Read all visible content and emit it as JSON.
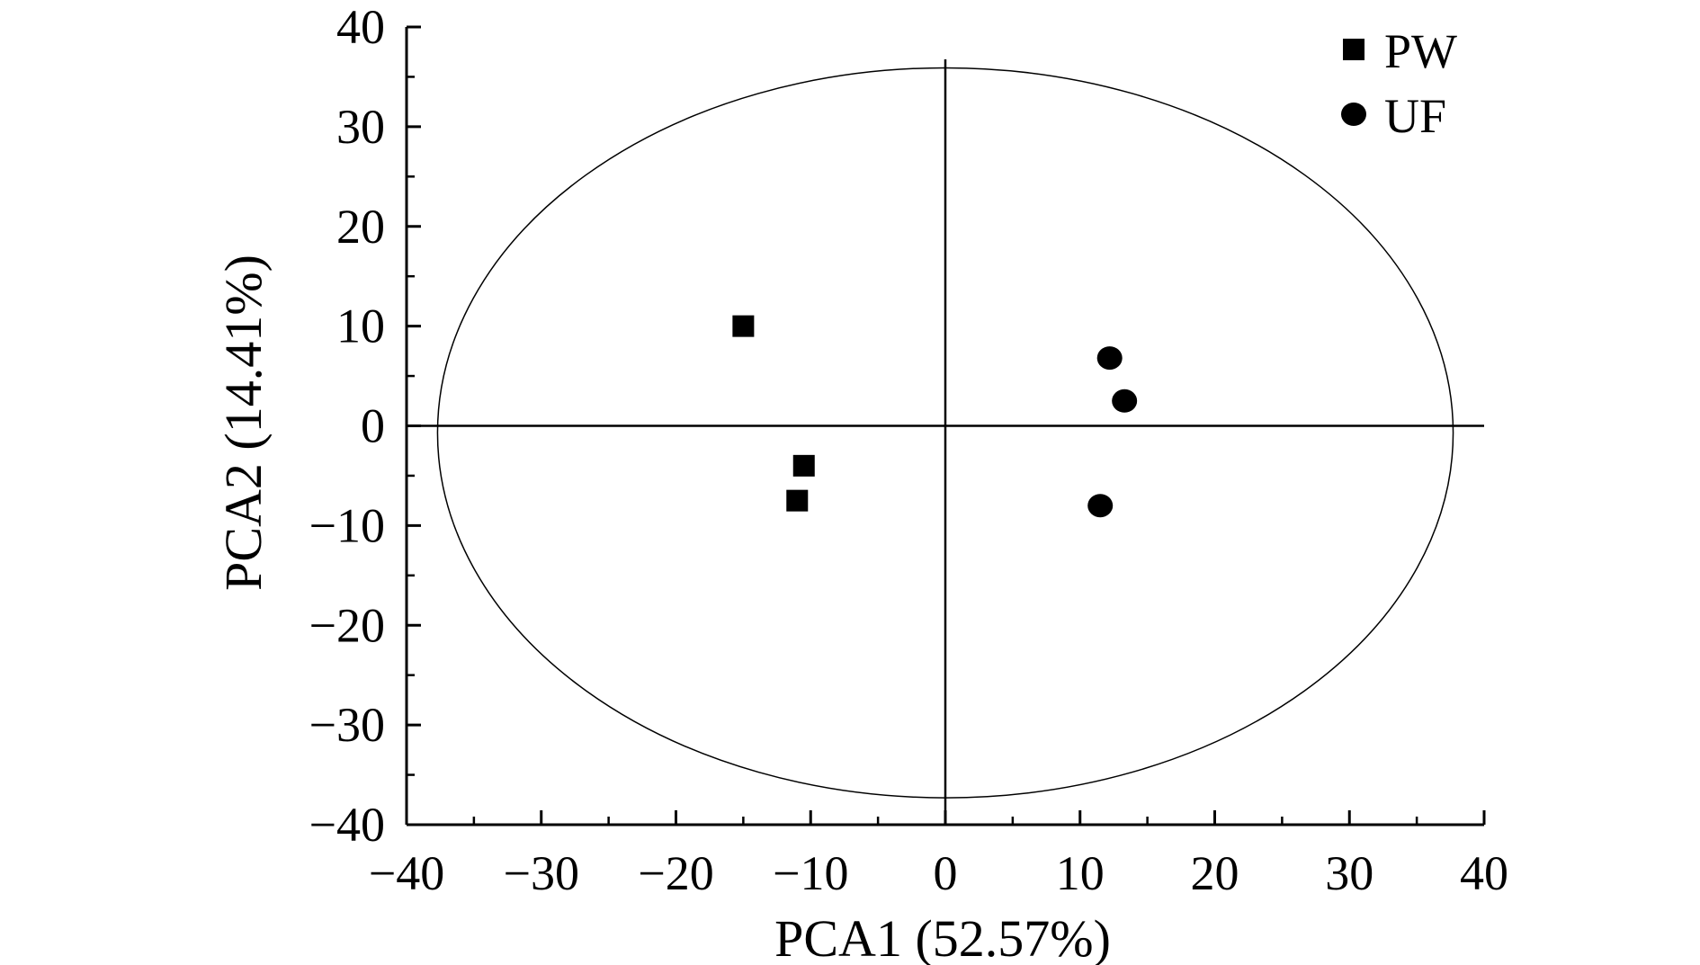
{
  "chart_data": {
    "type": "scatter",
    "xlabel": "PCA1 (52.57%)",
    "ylabel": "PCA2 (14.41%)",
    "xlim": [
      -40,
      40
    ],
    "ylim": [
      -40,
      40
    ],
    "x_ticks": [
      -40,
      -30,
      -20,
      -10,
      0,
      10,
      20,
      30,
      40
    ],
    "y_ticks": [
      -40,
      -30,
      -20,
      -10,
      0,
      10,
      20,
      30,
      40
    ],
    "x_tick_labels": [
      "−40",
      "−30",
      "−20",
      "−10",
      "0",
      "10",
      "20",
      "30",
      "40"
    ],
    "y_tick_labels": [
      "−40",
      "−30",
      "−20",
      "−10",
      "0",
      "10",
      "20",
      "30",
      "40"
    ],
    "legend_position": "top-right",
    "zero_lines": true,
    "confidence_ellipse": {
      "cx": 0,
      "cy": -0.7,
      "rx": 37.7,
      "ry": 36.6
    },
    "series": [
      {
        "name": "PW",
        "marker": "square",
        "color": "#000000",
        "points": [
          {
            "x": -15.0,
            "y": 10.0
          },
          {
            "x": -10.5,
            "y": -4.0
          },
          {
            "x": -11.0,
            "y": -7.5
          }
        ]
      },
      {
        "name": "UF",
        "marker": "circle",
        "color": "#000000",
        "points": [
          {
            "x": 12.2,
            "y": 6.8
          },
          {
            "x": 13.3,
            "y": 2.5
          },
          {
            "x": 11.5,
            "y": -8.0
          }
        ]
      }
    ]
  }
}
